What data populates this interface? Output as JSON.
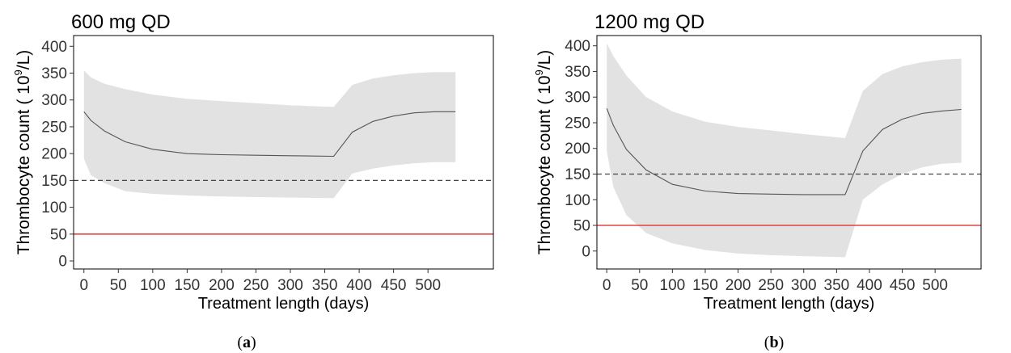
{
  "chart_data": [
    {
      "type": "line",
      "title": "600 mg QD",
      "caption_letter": "a",
      "xlabel": "Treatment length (days)",
      "ylabel_pre": "Thrombocyte count ( 10",
      "ylabel_sup": "9",
      "ylabel_post": "/L)",
      "xlim": [
        -15,
        595
      ],
      "ylim": [
        -15,
        420
      ],
      "xticks": [
        0,
        50,
        100,
        150,
        200,
        250,
        300,
        350,
        400,
        450,
        500
      ],
      "yticks": [
        0,
        50,
        100,
        150,
        200,
        250,
        300,
        350,
        400
      ],
      "x": [
        0,
        10,
        30,
        60,
        100,
        150,
        200,
        250,
        300,
        363,
        390,
        420,
        450,
        480,
        510,
        540
      ],
      "median": [
        278,
        262,
        242,
        222,
        208,
        200,
        198,
        197,
        196,
        195,
        240,
        260,
        270,
        276,
        278,
        278
      ],
      "upper": [
        355,
        342,
        330,
        320,
        310,
        302,
        298,
        294,
        290,
        287,
        328,
        340,
        346,
        350,
        352,
        352
      ],
      "lower": [
        190,
        160,
        145,
        130,
        125,
        122,
        120,
        119,
        118,
        117,
        163,
        172,
        178,
        182,
        184,
        184
      ],
      "reference_lines": [
        {
          "y": 150,
          "style": "dashed",
          "color": "#444444"
        },
        {
          "y": 50,
          "style": "solid",
          "color": "#dd2222"
        }
      ],
      "band_color": "#e2e2e2",
      "line_color": "#555555"
    },
    {
      "type": "line",
      "title": "1200 mg QD",
      "caption_letter": "b",
      "xlabel": "Treatment length (days)",
      "ylabel_pre": "Thrombocyte count ( 10",
      "ylabel_sup": "9",
      "ylabel_post": "/L)",
      "xlim": [
        -15,
        570
      ],
      "ylim": [
        -35,
        420
      ],
      "xticks": [
        0,
        50,
        100,
        150,
        200,
        250,
        300,
        350,
        400,
        450,
        500
      ],
      "yticks": [
        0,
        50,
        100,
        150,
        200,
        250,
        300,
        350,
        400
      ],
      "x": [
        0,
        10,
        30,
        60,
        100,
        150,
        200,
        250,
        300,
        363,
        390,
        420,
        450,
        480,
        510,
        540
      ],
      "median": [
        278,
        245,
        198,
        158,
        130,
        117,
        112,
        111,
        110,
        110,
        195,
        237,
        257,
        268,
        273,
        276
      ],
      "upper": [
        405,
        380,
        342,
        300,
        272,
        252,
        242,
        235,
        228,
        220,
        312,
        345,
        360,
        368,
        373,
        375
      ],
      "lower": [
        195,
        125,
        70,
        35,
        15,
        2,
        -5,
        -8,
        -10,
        -12,
        100,
        130,
        150,
        163,
        170,
        172
      ],
      "reference_lines": [
        {
          "y": 150,
          "style": "dashed",
          "color": "#444444"
        },
        {
          "y": 50,
          "style": "solid",
          "color": "#dd2222"
        }
      ],
      "band_color": "#e2e2e2",
      "line_color": "#555555"
    }
  ]
}
